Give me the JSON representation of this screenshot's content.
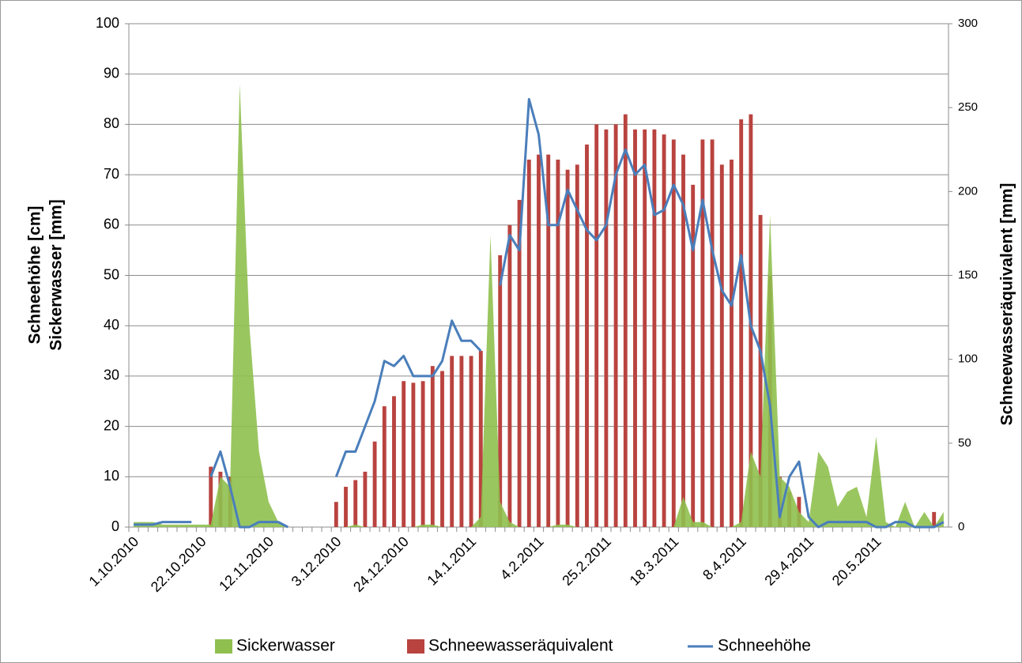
{
  "chart_data": {
    "type": "combo",
    "y_label": [
      "Schneehöhe [cm]",
      "Sickerwasser [mm]"
    ],
    "y2_label": "Schneewasseräquivalent [mm]",
    "categories": [
      "1.10.2010",
      null,
      null,
      null,
      null,
      null,
      null,
      "22.10.2010",
      null,
      null,
      null,
      null,
      null,
      null,
      "12.11.2010",
      null,
      null,
      null,
      null,
      null,
      null,
      "3.12.2010",
      null,
      null,
      null,
      null,
      null,
      null,
      "24.12.2010",
      null,
      null,
      null,
      null,
      null,
      null,
      "14.1.2011",
      null,
      null,
      null,
      null,
      null,
      null,
      "4.2.2011",
      null,
      null,
      null,
      null,
      null,
      null,
      "25.2.2011",
      null,
      null,
      null,
      null,
      null,
      null,
      "18.3.2011",
      null,
      null,
      null,
      null,
      null,
      null,
      "8.4.2011",
      null,
      null,
      null,
      null,
      null,
      null,
      "29.4.2011",
      null,
      null,
      null,
      null,
      null,
      null,
      "20.5.2011",
      null,
      null,
      null,
      null,
      null,
      null,
      null
    ],
    "series": [
      {
        "name": "Sickerwasser",
        "type": "area",
        "color": "#8fc04f",
        "values": [
          1,
          1,
          1,
          0.5,
          0.5,
          0.5,
          0.5,
          0.5,
          0.5,
          10,
          8,
          88,
          40,
          15,
          5,
          1,
          0,
          0,
          0,
          0,
          0,
          0,
          0,
          0.5,
          0,
          0,
          0,
          0,
          0,
          0,
          0.5,
          0.5,
          0,
          0,
          0,
          0,
          2,
          58,
          5,
          1,
          0,
          0,
          0,
          0,
          0.5,
          0.5,
          0,
          0,
          0,
          0,
          0,
          0,
          0,
          0,
          0,
          0,
          0,
          6,
          1,
          1,
          0,
          0,
          0,
          1,
          15,
          10,
          62,
          10,
          8,
          3,
          1,
          15,
          12,
          4,
          7,
          8,
          2,
          18,
          1,
          0,
          5,
          0,
          3,
          0,
          3
        ]
      },
      {
        "name": "Schneewasseräquivalent",
        "type": "bar",
        "axis": "y2",
        "color": "#b9433f",
        "values": [
          0,
          0,
          0,
          0,
          0,
          0,
          0,
          0,
          36,
          33,
          30,
          0,
          0,
          0,
          0,
          0,
          0,
          0,
          0,
          0,
          0,
          15,
          24,
          28,
          33,
          51,
          72,
          78,
          87,
          86,
          87,
          96,
          93,
          102,
          102,
          102,
          105,
          0,
          162,
          180,
          195,
          219,
          222,
          222,
          219,
          213,
          216,
          228,
          240,
          237,
          240,
          246,
          237,
          237,
          237,
          234,
          231,
          222,
          204,
          231,
          231,
          216,
          219,
          243,
          246,
          186,
          150,
          30,
          21,
          18,
          0,
          0,
          0,
          0,
          0,
          0,
          0,
          0,
          0,
          0,
          0,
          0,
          0,
          9,
          0
        ]
      },
      {
        "name": "Schneehöhe",
        "type": "line",
        "color": "#4a7ebb",
        "values": [
          0.5,
          0.5,
          0.5,
          1,
          1,
          1,
          1,
          null,
          10,
          15,
          8,
          0,
          0,
          1,
          1,
          1,
          0,
          null,
          null,
          null,
          null,
          10,
          15,
          15,
          20,
          25,
          33,
          32,
          34,
          30,
          30,
          30,
          33,
          41,
          37,
          37,
          35,
          null,
          48,
          58,
          55,
          85,
          78,
          60,
          60,
          67,
          63,
          59,
          57,
          60,
          70,
          75,
          70,
          72,
          62,
          63,
          68,
          64,
          55,
          65,
          55,
          47,
          44,
          54,
          40,
          35,
          24,
          2,
          10,
          13,
          2,
          0,
          1,
          1,
          1,
          1,
          1,
          0,
          0,
          1,
          1,
          0,
          0,
          0,
          1
        ]
      }
    ],
    "ylim": [
      0,
      100
    ],
    "yticks": [
      0,
      10,
      20,
      30,
      40,
      50,
      60,
      70,
      80,
      90,
      100
    ],
    "y2lim": [
      0,
      300
    ],
    "y2ticks": [
      0,
      50,
      100,
      150,
      200,
      250,
      300
    ],
    "grid": true,
    "legend": "bottom"
  }
}
